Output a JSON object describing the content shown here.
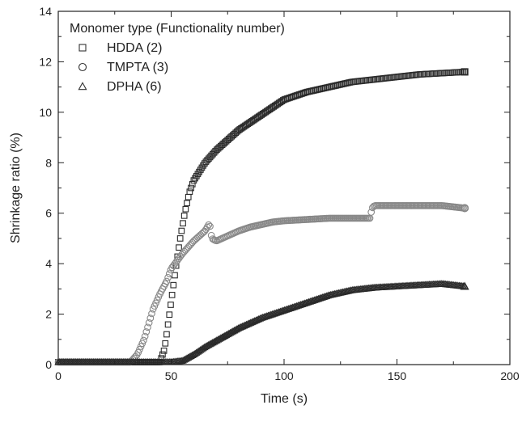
{
  "chart_data": {
    "type": "scatter",
    "xlabel": "Time (s)",
    "ylabel": "Shrinkage ratio (%)",
    "xlim": [
      0,
      200
    ],
    "ylim": [
      0,
      14
    ],
    "x_ticks": [
      0,
      50,
      100,
      150,
      200
    ],
    "y_ticks": [
      0,
      2,
      4,
      6,
      8,
      10,
      12,
      14
    ],
    "grid": false,
    "legend_position": "top-left",
    "legend_title": "Monomer type (Functionality number)",
    "series": [
      {
        "name": "HDDA (2)",
        "marker": "square",
        "color": "#2a2a2a",
        "points": [
          [
            0,
            0.1
          ],
          [
            20,
            0.1
          ],
          [
            40,
            0.1
          ],
          [
            45,
            0.1
          ],
          [
            47,
            0.6
          ],
          [
            48,
            1.2
          ],
          [
            50,
            2.5
          ],
          [
            52,
            3.8
          ],
          [
            54,
            5.0
          ],
          [
            56,
            6.0
          ],
          [
            58,
            6.8
          ],
          [
            60,
            7.3
          ],
          [
            65,
            8.0
          ],
          [
            70,
            8.5
          ],
          [
            75,
            8.9
          ],
          [
            80,
            9.3
          ],
          [
            85,
            9.6
          ],
          [
            90,
            9.9
          ],
          [
            95,
            10.2
          ],
          [
            100,
            10.5
          ],
          [
            110,
            10.8
          ],
          [
            120,
            11.0
          ],
          [
            130,
            11.2
          ],
          [
            140,
            11.3
          ],
          [
            150,
            11.4
          ],
          [
            160,
            11.5
          ],
          [
            170,
            11.55
          ],
          [
            180,
            11.6
          ]
        ]
      },
      {
        "name": "TMPTA (3)",
        "marker": "circle",
        "color": "#888888",
        "points": [
          [
            0,
            0.1
          ],
          [
            20,
            0.1
          ],
          [
            32,
            0.1
          ],
          [
            35,
            0.4
          ],
          [
            38,
            1.0
          ],
          [
            40,
            1.6
          ],
          [
            42,
            2.2
          ],
          [
            45,
            2.8
          ],
          [
            48,
            3.3
          ],
          [
            50,
            3.8
          ],
          [
            55,
            4.4
          ],
          [
            60,
            4.9
          ],
          [
            65,
            5.3
          ],
          [
            67,
            5.6
          ],
          [
            68,
            5.0
          ],
          [
            70,
            4.9
          ],
          [
            75,
            5.1
          ],
          [
            80,
            5.3
          ],
          [
            85,
            5.45
          ],
          [
            90,
            5.55
          ],
          [
            95,
            5.65
          ],
          [
            100,
            5.7
          ],
          [
            110,
            5.75
          ],
          [
            120,
            5.8
          ],
          [
            130,
            5.8
          ],
          [
            138,
            5.8
          ],
          [
            139,
            6.2
          ],
          [
            140,
            6.3
          ],
          [
            150,
            6.3
          ],
          [
            160,
            6.3
          ],
          [
            170,
            6.3
          ],
          [
            180,
            6.2
          ]
        ]
      },
      {
        "name": "DPHA (6)",
        "marker": "triangle",
        "color": "#2a2a2a",
        "points": [
          [
            0,
            0.1
          ],
          [
            30,
            0.1
          ],
          [
            50,
            0.1
          ],
          [
            55,
            0.15
          ],
          [
            60,
            0.4
          ],
          [
            65,
            0.7
          ],
          [
            70,
            0.95
          ],
          [
            75,
            1.2
          ],
          [
            80,
            1.45
          ],
          [
            85,
            1.65
          ],
          [
            90,
            1.85
          ],
          [
            95,
            2.0
          ],
          [
            100,
            2.15
          ],
          [
            105,
            2.3
          ],
          [
            110,
            2.45
          ],
          [
            115,
            2.6
          ],
          [
            120,
            2.75
          ],
          [
            125,
            2.85
          ],
          [
            130,
            2.95
          ],
          [
            140,
            3.05
          ],
          [
            150,
            3.1
          ],
          [
            160,
            3.15
          ],
          [
            170,
            3.2
          ],
          [
            180,
            3.1
          ]
        ]
      }
    ]
  }
}
